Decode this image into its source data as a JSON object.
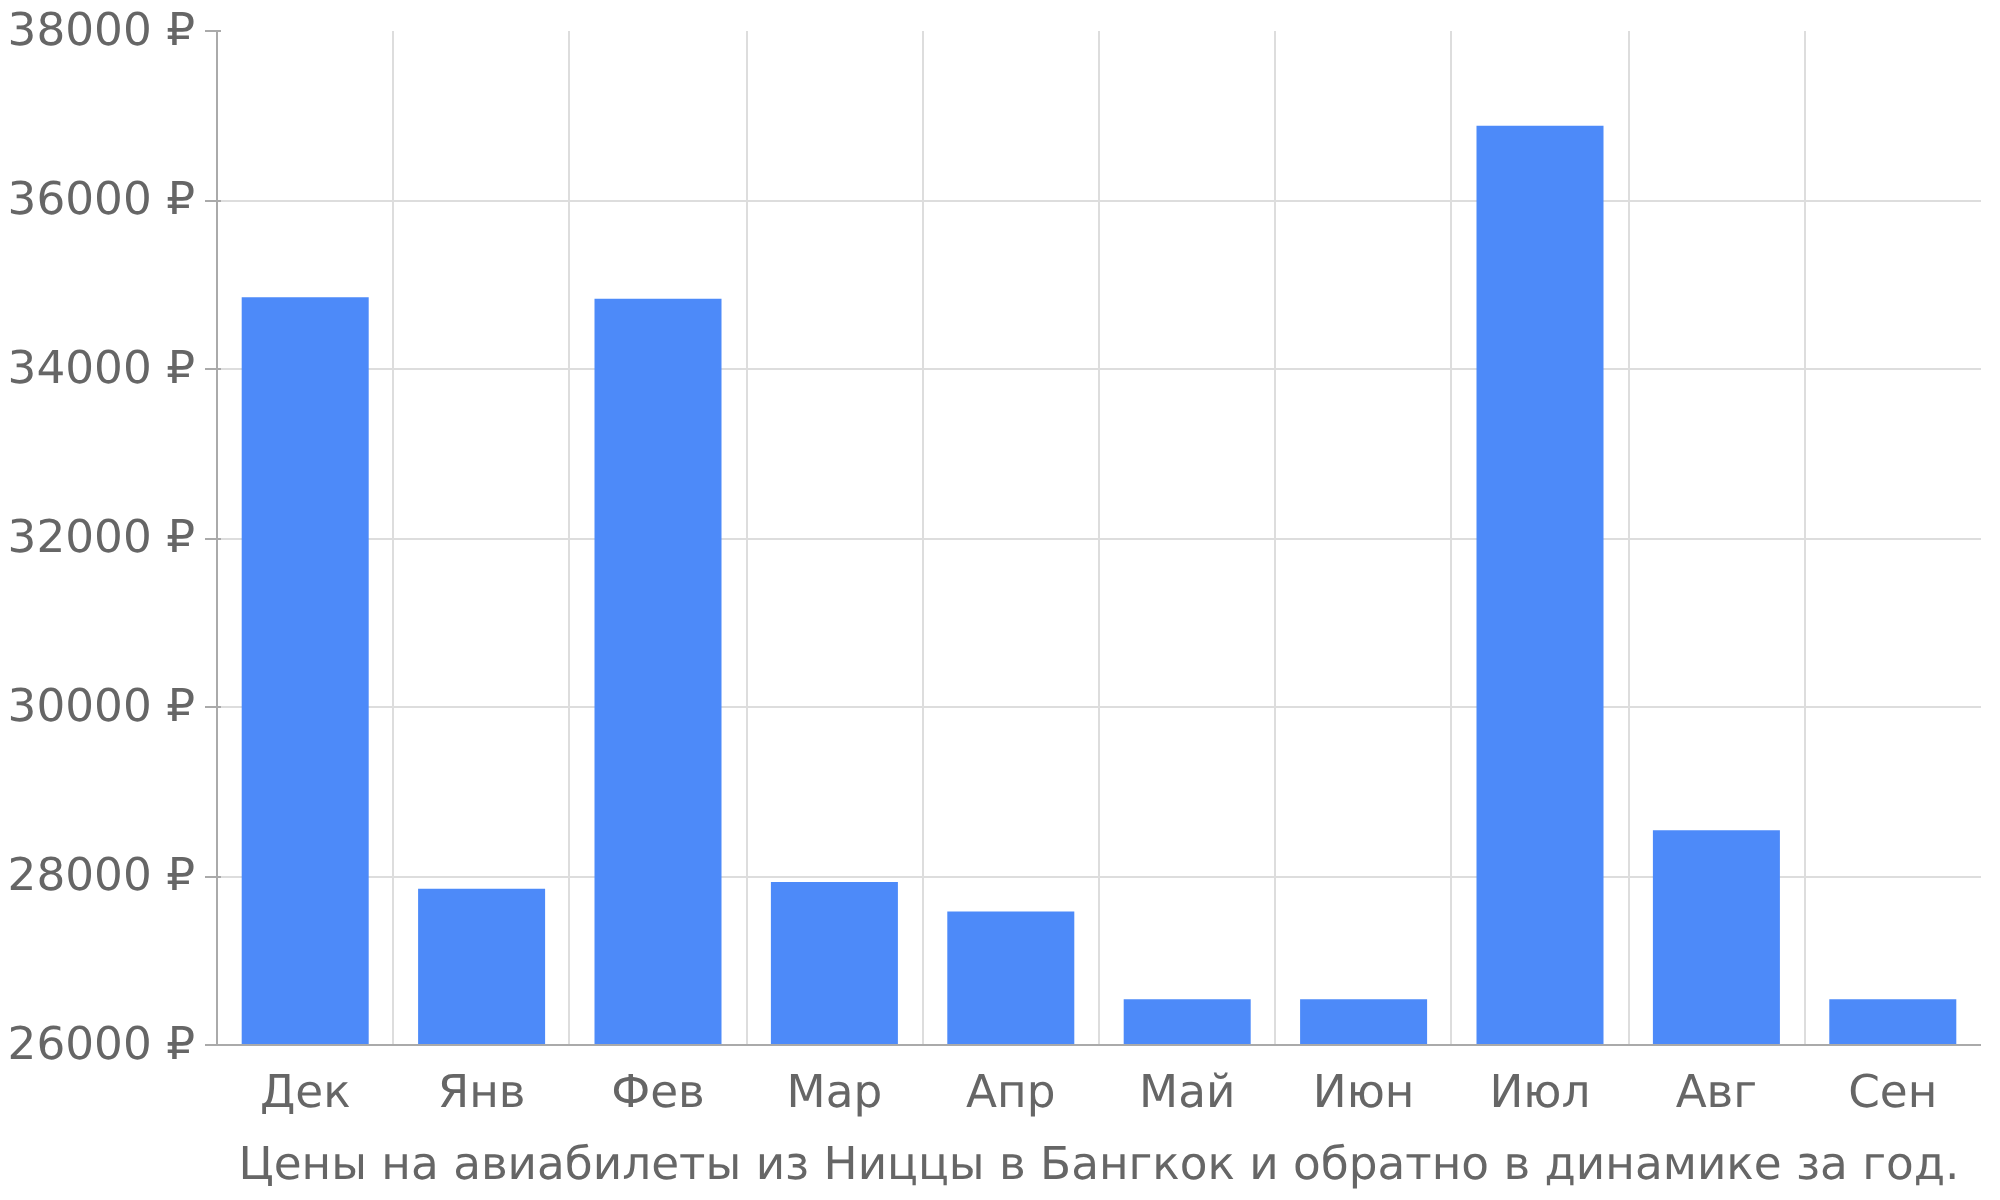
{
  "chart_data": {
    "type": "bar",
    "categories": [
      "Дек",
      "Янв",
      "Фев",
      "Мар",
      "Апр",
      "Май",
      "Июн",
      "Июл",
      "Авг",
      "Сен"
    ],
    "values": [
      34850,
      27850,
      34830,
      27930,
      27580,
      26540,
      26540,
      36880,
      28540,
      26540
    ],
    "color": "#4d8af9",
    "ylim": [
      26000,
      38000
    ],
    "yticks": [
      {
        "value": 26000,
        "label": "26000 ₽"
      },
      {
        "value": 28000,
        "label": "28000 ₽"
      },
      {
        "value": 30000,
        "label": "30000 ₽"
      },
      {
        "value": 32000,
        "label": "32000 ₽"
      },
      {
        "value": 34000,
        "label": "34000 ₽"
      },
      {
        "value": 36000,
        "label": "36000 ₽"
      },
      {
        "value": 38000,
        "label": "38000 ₽"
      }
    ],
    "grid": true,
    "annotations": [
      "Цены на авиабилеты из Ниццы в Бангкок и обратно в динамике за год."
    ]
  }
}
